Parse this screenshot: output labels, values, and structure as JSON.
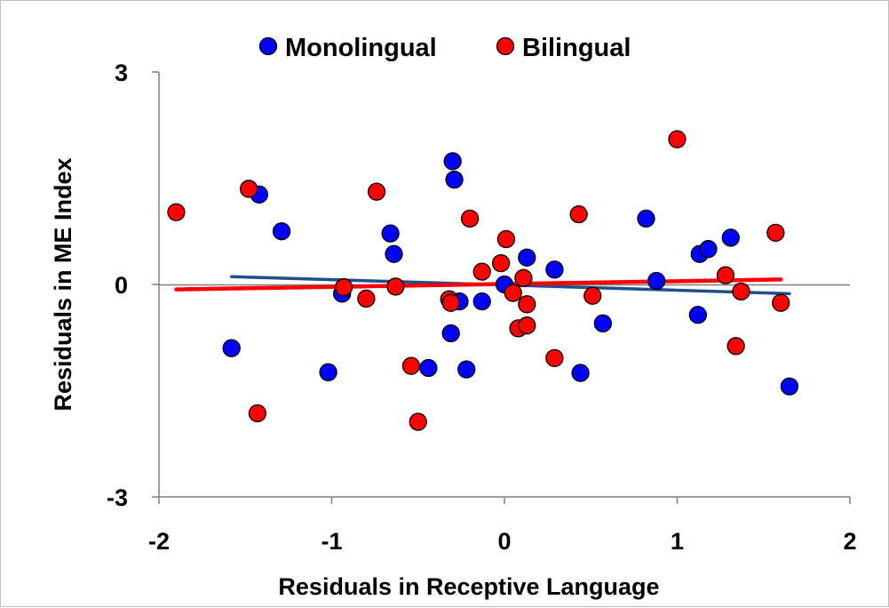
{
  "chart_data": {
    "type": "scatter",
    "title": "",
    "xlabel": "Residuals in Receptive Language",
    "ylabel": "Residuals in ME Index",
    "xlim": [
      -2,
      2
    ],
    "ylim": [
      -3,
      3
    ],
    "x_ticks": [
      "-2",
      "-1",
      "0",
      "1",
      "2"
    ],
    "y_ticks": [
      "3",
      "0",
      "-3"
    ],
    "grid": false,
    "legend_position": "top",
    "series": [
      {
        "name": "Monolingual",
        "color": "#0000ff",
        "points": [
          [
            -1.58,
            -0.9
          ],
          [
            -1.42,
            1.27
          ],
          [
            -1.29,
            0.75
          ],
          [
            -1.02,
            -1.24
          ],
          [
            -0.94,
            -0.13
          ],
          [
            -0.66,
            0.72
          ],
          [
            -0.64,
            0.43
          ],
          [
            -0.44,
            -1.18
          ],
          [
            -0.31,
            -0.69
          ],
          [
            -0.3,
            1.74
          ],
          [
            -0.29,
            1.48
          ],
          [
            -0.26,
            -0.24
          ],
          [
            -0.22,
            -1.2
          ],
          [
            -0.13,
            -0.24
          ],
          [
            0,
            0
          ],
          [
            0.13,
            0.38
          ],
          [
            0.29,
            0.21
          ],
          [
            0.44,
            -1.25
          ],
          [
            0.57,
            -0.55
          ],
          [
            0.82,
            0.93
          ],
          [
            0.88,
            0.05
          ],
          [
            1.12,
            -0.43
          ],
          [
            1.13,
            0.43
          ],
          [
            1.18,
            0.5
          ],
          [
            1.31,
            0.66
          ],
          [
            1.65,
            -1.44
          ]
        ]
      },
      {
        "name": "Bilingual",
        "color": "#ff0000",
        "points": [
          [
            -1.9,
            1.02
          ],
          [
            -1.48,
            1.35
          ],
          [
            -1.43,
            -1.82
          ],
          [
            -0.93,
            -0.04
          ],
          [
            -0.8,
            -0.2
          ],
          [
            -0.74,
            1.31
          ],
          [
            -0.63,
            -0.03
          ],
          [
            -0.54,
            -1.15
          ],
          [
            -0.5,
            -1.94
          ],
          [
            -0.32,
            -0.21
          ],
          [
            -0.31,
            -0.26
          ],
          [
            -0.2,
            0.93
          ],
          [
            -0.13,
            0.18
          ],
          [
            -0.02,
            0.3
          ],
          [
            0.01,
            0.64
          ],
          [
            0.05,
            -0.12
          ],
          [
            0.08,
            -0.62
          ],
          [
            0.11,
            0.09
          ],
          [
            0.13,
            -0.28
          ],
          [
            0.13,
            -0.58
          ],
          [
            0.29,
            -1.04
          ],
          [
            0.43,
            0.99
          ],
          [
            0.51,
            -0.16
          ],
          [
            1,
            2.05
          ],
          [
            1.28,
            0.13
          ],
          [
            1.34,
            -0.87
          ],
          [
            1.37,
            -0.1
          ],
          [
            1.57,
            0.73
          ],
          [
            1.6,
            -0.26
          ]
        ]
      }
    ],
    "trend_lines": [
      {
        "series": "Monolingual",
        "color": "#1f4e8c",
        "x": [
          -1.58,
          1.65
        ],
        "y": [
          0.11,
          -0.13
        ]
      },
      {
        "series": "Bilingual",
        "color": "#ff0000",
        "x": [
          -1.9,
          1.6
        ],
        "y": [
          -0.07,
          0.07
        ]
      }
    ]
  }
}
